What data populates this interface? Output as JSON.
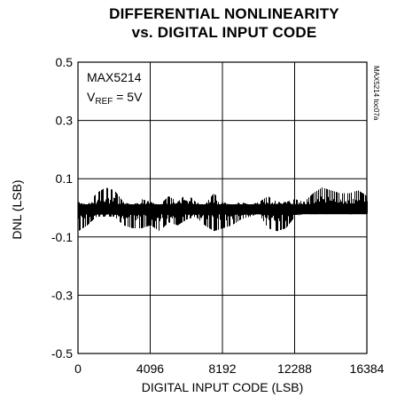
{
  "chart_data": {
    "type": "line",
    "title_line1": "DIFFERENTIAL NONLINEARITY",
    "title_line2": "vs. DIGITAL INPUT CODE",
    "xlabel": "DIGITAL INPUT CODE (LSB)",
    "ylabel": "DNL (LSB)",
    "xlim": [
      0,
      16384
    ],
    "ylim": [
      -0.5,
      0.5
    ],
    "x_ticks": [
      0,
      4096,
      8192,
      12288,
      16384
    ],
    "x_tick_labels": [
      "0",
      "4096",
      "8192",
      "12288",
      "16384"
    ],
    "y_ticks": [
      0.5,
      0.3,
      0.1,
      -0.1,
      -0.3,
      -0.5
    ],
    "y_tick_labels": [
      "0.5",
      "0.3",
      "0.1",
      "-0.1",
      "-0.3",
      "-0.5"
    ],
    "grid": true,
    "annotation_part": "MAX5214",
    "annotation_vref_main": "V",
    "annotation_vref_sub": "REF",
    "annotation_vref_value": " = 5V",
    "side_code": "MAX5214 toc07a",
    "series": [
      {
        "x": [
          0,
          512,
          1024,
          1536,
          2048,
          2560,
          3072,
          3584,
          4096,
          4608,
          5120,
          5632,
          6144,
          6656,
          7168,
          7680,
          8192,
          8704,
          9216,
          9728,
          10240,
          10752,
          11264,
          11776,
          12288,
          12800,
          13312,
          13824,
          14336,
          14848,
          15360,
          15872,
          16384
        ],
        "y_max": [
          0.02,
          0.01,
          0.05,
          0.07,
          0.06,
          0.02,
          0.01,
          0.03,
          0.02,
          0.01,
          0.04,
          0.02,
          0.05,
          0.02,
          0.01,
          0.05,
          0.02,
          0.01,
          0.02,
          0.01,
          0.02,
          0.04,
          0.02,
          0.02,
          0.03,
          0.02,
          0.05,
          0.07,
          0.06,
          0.05,
          0.05,
          0.06,
          0.04
        ],
        "y_min": [
          -0.08,
          -0.06,
          -0.03,
          -0.03,
          -0.03,
          -0.06,
          -0.07,
          -0.07,
          -0.06,
          -0.08,
          -0.05,
          -0.06,
          -0.04,
          -0.03,
          -0.06,
          -0.08,
          -0.07,
          -0.06,
          -0.04,
          -0.03,
          -0.02,
          -0.07,
          -0.08,
          -0.07,
          -0.03,
          -0.02,
          -0.02,
          -0.02,
          -0.02,
          -0.01,
          -0.02,
          -0.02,
          -0.02
        ]
      }
    ]
  },
  "colors": {
    "line": "#000000",
    "grid": "#000000",
    "background": "#ffffff"
  }
}
